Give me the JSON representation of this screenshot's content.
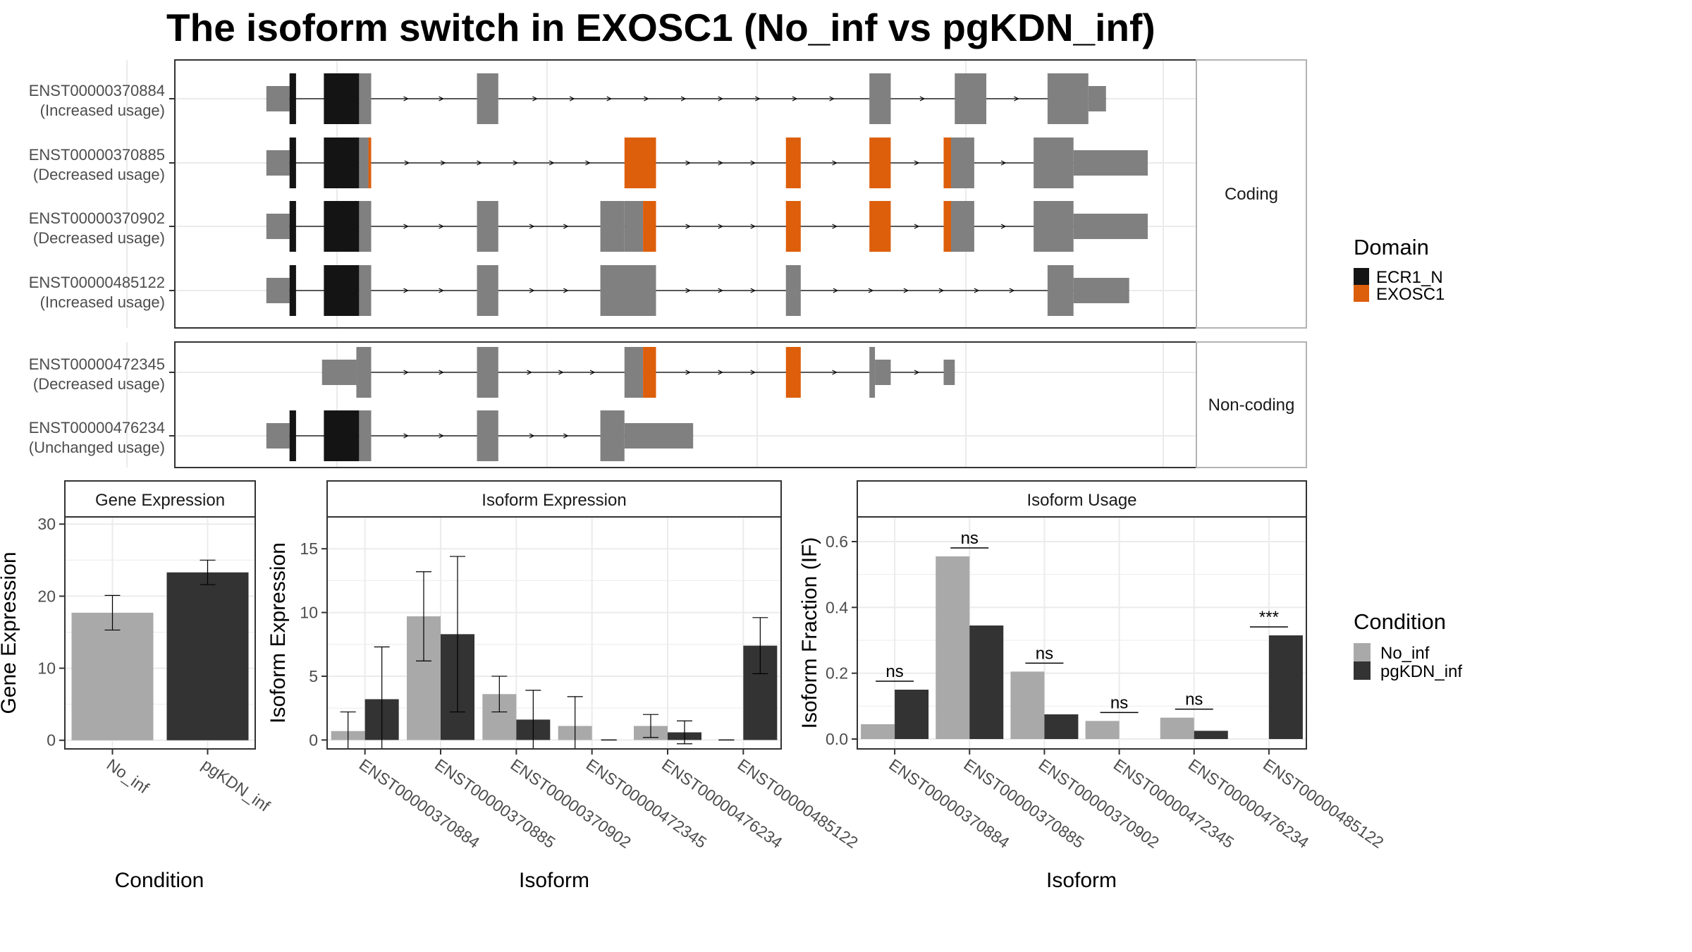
{
  "title": "The isoform switch in EXOSC1 (No_inf vs pgKDN_inf)",
  "colors": {
    "exon": "#808080",
    "ECR1_N": "#141414",
    "EXOSC1": "#DD5E0B",
    "No_inf": "#A9A9A9",
    "pgKDN_inf": "#333333",
    "grid": "#EBEBEB",
    "panel_border": "#333333",
    "strip_fill": "#FFFFFF"
  },
  "structure_panel": {
    "groups": [
      {
        "label": "Coding",
        "isoforms": [
          {
            "id": "ENST00000370884",
            "usage": "(Increased usage)",
            "exons": [
              {
                "s": 0.05,
                "e": 0.075,
                "h": "utr"
              },
              {
                "s": 0.075,
                "e": 0.082,
                "h": "cds",
                "d": "ECR1_N"
              },
              {
                "s": 0.112,
                "e": 0.15,
                "h": "cds",
                "d": "ECR1_N"
              },
              {
                "s": 0.15,
                "e": 0.163,
                "h": "cds"
              },
              {
                "s": 0.277,
                "e": 0.3,
                "h": "cds"
              },
              {
                "s": 0.7,
                "e": 0.723,
                "h": "cds"
              },
              {
                "s": 0.792,
                "e": 0.826,
                "h": "cds"
              },
              {
                "s": 0.892,
                "e": 0.936,
                "h": "cds"
              },
              {
                "s": 0.936,
                "e": 0.955,
                "h": "utr"
              }
            ]
          },
          {
            "id": "ENST00000370885",
            "usage": "(Decreased usage)",
            "exons": [
              {
                "s": 0.05,
                "e": 0.075,
                "h": "utr"
              },
              {
                "s": 0.075,
                "e": 0.082,
                "h": "cds",
                "d": "ECR1_N"
              },
              {
                "s": 0.112,
                "e": 0.15,
                "h": "cds",
                "d": "ECR1_N"
              },
              {
                "s": 0.15,
                "e": 0.16,
                "h": "cds"
              },
              {
                "s": 0.16,
                "e": 0.163,
                "h": "cds",
                "d": "EXOSC1"
              },
              {
                "s": 0.436,
                "e": 0.47,
                "h": "cds",
                "d": "EXOSC1"
              },
              {
                "s": 0.61,
                "e": 0.626,
                "h": "cds",
                "d": "EXOSC1"
              },
              {
                "s": 0.7,
                "e": 0.723,
                "h": "cds",
                "d": "EXOSC1"
              },
              {
                "s": 0.78,
                "e": 0.788,
                "h": "cds",
                "d": "EXOSC1"
              },
              {
                "s": 0.788,
                "e": 0.813,
                "h": "cds"
              },
              {
                "s": 0.877,
                "e": 0.92,
                "h": "cds"
              },
              {
                "s": 0.92,
                "e": 1.0,
                "h": "utr"
              }
            ]
          },
          {
            "id": "ENST00000370902",
            "usage": "(Decreased usage)",
            "exons": [
              {
                "s": 0.05,
                "e": 0.075,
                "h": "utr"
              },
              {
                "s": 0.075,
                "e": 0.082,
                "h": "cds",
                "d": "ECR1_N"
              },
              {
                "s": 0.112,
                "e": 0.15,
                "h": "cds",
                "d": "ECR1_N"
              },
              {
                "s": 0.15,
                "e": 0.163,
                "h": "cds"
              },
              {
                "s": 0.277,
                "e": 0.3,
                "h": "cds"
              },
              {
                "s": 0.41,
                "e": 0.436,
                "h": "cds"
              },
              {
                "s": 0.436,
                "e": 0.456,
                "h": "cds"
              },
              {
                "s": 0.456,
                "e": 0.47,
                "h": "cds",
                "d": "EXOSC1"
              },
              {
                "s": 0.61,
                "e": 0.626,
                "h": "cds",
                "d": "EXOSC1"
              },
              {
                "s": 0.7,
                "e": 0.723,
                "h": "cds",
                "d": "EXOSC1"
              },
              {
                "s": 0.78,
                "e": 0.788,
                "h": "cds",
                "d": "EXOSC1"
              },
              {
                "s": 0.788,
                "e": 0.813,
                "h": "cds"
              },
              {
                "s": 0.877,
                "e": 0.92,
                "h": "cds"
              },
              {
                "s": 0.92,
                "e": 1.0,
                "h": "utr"
              }
            ]
          },
          {
            "id": "ENST00000485122",
            "usage": "(Increased usage)",
            "exons": [
              {
                "s": 0.05,
                "e": 0.075,
                "h": "utr"
              },
              {
                "s": 0.075,
                "e": 0.082,
                "h": "cds",
                "d": "ECR1_N"
              },
              {
                "s": 0.112,
                "e": 0.15,
                "h": "cds",
                "d": "ECR1_N"
              },
              {
                "s": 0.15,
                "e": 0.163,
                "h": "cds"
              },
              {
                "s": 0.277,
                "e": 0.3,
                "h": "cds"
              },
              {
                "s": 0.41,
                "e": 0.47,
                "h": "cds"
              },
              {
                "s": 0.61,
                "e": 0.626,
                "h": "cds"
              },
              {
                "s": 0.892,
                "e": 0.92,
                "h": "cds"
              },
              {
                "s": 0.92,
                "e": 0.98,
                "h": "utr"
              }
            ]
          }
        ]
      },
      {
        "label": "Non-coding",
        "isoforms": [
          {
            "id": "ENST00000472345",
            "usage": "(Decreased usage)",
            "exons": [
              {
                "s": 0.11,
                "e": 0.147,
                "h": "utr"
              },
              {
                "s": 0.147,
                "e": 0.163,
                "h": "cds"
              },
              {
                "s": 0.277,
                "e": 0.3,
                "h": "cds"
              },
              {
                "s": 0.436,
                "e": 0.456,
                "h": "cds"
              },
              {
                "s": 0.456,
                "e": 0.47,
                "h": "cds",
                "d": "EXOSC1"
              },
              {
                "s": 0.61,
                "e": 0.626,
                "h": "cds",
                "d": "EXOSC1"
              },
              {
                "s": 0.7,
                "e": 0.706,
                "h": "cds"
              },
              {
                "s": 0.706,
                "e": 0.723,
                "h": "utr"
              },
              {
                "s": 0.78,
                "e": 0.792,
                "h": "utr"
              }
            ]
          },
          {
            "id": "ENST00000476234",
            "usage": "(Unchanged usage)",
            "exons": [
              {
                "s": 0.05,
                "e": 0.075,
                "h": "utr"
              },
              {
                "s": 0.075,
                "e": 0.082,
                "h": "cds",
                "d": "ECR1_N"
              },
              {
                "s": 0.112,
                "e": 0.15,
                "h": "cds",
                "d": "ECR1_N"
              },
              {
                "s": 0.15,
                "e": 0.163,
                "h": "cds"
              },
              {
                "s": 0.277,
                "e": 0.3,
                "h": "cds"
              },
              {
                "s": 0.41,
                "e": 0.436,
                "h": "cds"
              },
              {
                "s": 0.436,
                "e": 0.51,
                "h": "utr"
              }
            ]
          }
        ]
      }
    ],
    "legend": {
      "title": "Domain",
      "items": [
        "ECR1_N",
        "EXOSC1"
      ]
    }
  },
  "chart_data": [
    {
      "type": "bar",
      "title": "Gene Expression",
      "categories": [
        "No_inf",
        "pgKDN_inf"
      ],
      "series": [
        {
          "name": "",
          "values": [
            17.7,
            23.3
          ],
          "errors": [
            2.4,
            1.7
          ]
        }
      ],
      "xlabel": "Condition",
      "ylabel": "Gene Expression",
      "ylim": [
        -1.2,
        31
      ],
      "yticks": [
        0,
        10,
        20,
        30
      ],
      "grid": true
    },
    {
      "type": "bar",
      "title": "Isoform Expression",
      "categories": [
        "ENST00000370884",
        "ENST00000370885",
        "ENST00000370902",
        "ENST00000472345",
        "ENST00000476234",
        "ENST00000485122"
      ],
      "series": [
        {
          "name": "No_inf",
          "values": [
            0.7,
            9.7,
            3.6,
            1.1,
            1.1,
            0.0
          ],
          "errors": [
            1.5,
            3.5,
            1.4,
            2.3,
            0.9,
            0.0
          ]
        },
        {
          "name": "pgKDN_inf",
          "values": [
            3.2,
            8.3,
            1.6,
            0.0,
            0.6,
            7.4
          ],
          "errors": [
            4.1,
            6.1,
            2.3,
            0.0,
            0.9,
            2.2
          ]
        }
      ],
      "xlabel": "Isoform",
      "ylabel": "Isoform Expression",
      "ylim": [
        -0.7,
        17.5
      ],
      "yticks": [
        0,
        5,
        10,
        15
      ],
      "grid": true
    },
    {
      "type": "bar",
      "title": "Isoform Usage",
      "categories": [
        "ENST00000370884",
        "ENST00000370885",
        "ENST00000370902",
        "ENST00000472345",
        "ENST00000476234",
        "ENST00000485122"
      ],
      "series": [
        {
          "name": "No_inf",
          "values": [
            0.045,
            0.555,
            0.205,
            0.055,
            0.065,
            0.0
          ]
        },
        {
          "name": "pgKDN_inf",
          "values": [
            0.15,
            0.345,
            0.075,
            0.0,
            0.025,
            0.315
          ]
        }
      ],
      "significance": [
        "ns",
        "ns",
        "ns",
        "ns",
        "ns",
        "***"
      ],
      "xlabel": "Isoform",
      "ylabel": "Isoform Fraction (IF)",
      "ylim": [
        -0.03,
        0.675
      ],
      "yticks": [
        0.0,
        0.2,
        0.4,
        0.6
      ],
      "ytick_labels": [
        "0.0",
        "0.2",
        "0.4",
        "0.6"
      ],
      "grid": true
    }
  ],
  "condition_legend": {
    "title": "Condition",
    "items": [
      "No_inf",
      "pgKDN_inf"
    ]
  }
}
